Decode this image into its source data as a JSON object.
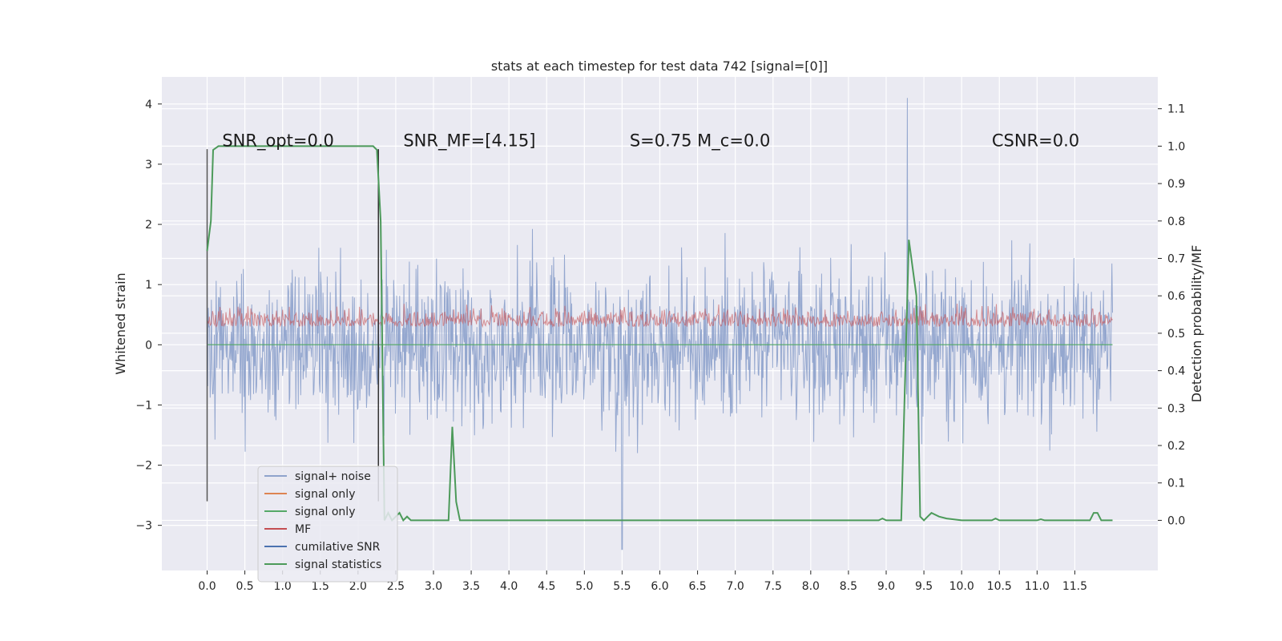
{
  "chart_data": {
    "type": "line",
    "title": "stats at each timestep for test data 742 [signal=[0]]",
    "ylabel_left": "Whitened strain",
    "ylabel_right": "Detection probability/MF",
    "xlabel": "",
    "xlim": [
      -0.6,
      12.6
    ],
    "ylim_left": [
      -3.75,
      4.45
    ],
    "ylim_right": [
      -0.134,
      1.185
    ],
    "xticks": [
      "0.0",
      "0.5",
      "1.0",
      "1.5",
      "2.0",
      "2.5",
      "3.0",
      "3.5",
      "4.0",
      "4.5",
      "5.0",
      "5.5",
      "6.0",
      "6.5",
      "7.0",
      "7.5",
      "8.0",
      "8.5",
      "9.0",
      "9.5",
      "10.0",
      "10.5",
      "11.0",
      "11.5"
    ],
    "yticks_left": [
      "−3",
      "−2",
      "−1",
      "0",
      "1",
      "2",
      "3",
      "4"
    ],
    "yticks_right": [
      "0.0",
      "0.1",
      "0.2",
      "0.3",
      "0.4",
      "0.5",
      "0.6",
      "0.7",
      "0.8",
      "0.9",
      "1.0",
      "1.1"
    ],
    "grid": true,
    "legend_position": "lower-left",
    "annotations": [
      {
        "text": "SNR_opt=0.0",
        "x": 0.2,
        "y": 3.3
      },
      {
        "text": "SNR_MF=[4.15]",
        "x": 2.6,
        "y": 3.3
      },
      {
        "text": "S=0.75   M_c=0.0",
        "x": 5.6,
        "y": 3.3
      },
      {
        "text": "CSNR=0.0",
        "x": 10.4,
        "y": 3.3
      }
    ],
    "series": [
      {
        "name": "signal+ noise",
        "color": "#8fa3cc",
        "description": "whitened strain noise spanning roughly -2.7 to 2.5 with spikes up to 4.1 near t=9.3",
        "x_range": [
          0.0,
          12.0
        ],
        "typical_range": [
          -2.2,
          2.2
        ],
        "max": 4.1,
        "max_at": 9.28,
        "min": -3.4,
        "min_at": 5.5
      },
      {
        "name": "signal only",
        "color": "#dd8452"
      },
      {
        "name": "signal only",
        "color": "#55a868",
        "values_constant": 0.0
      },
      {
        "name": "MF",
        "color": "#c44e52",
        "typical_range": [
          0.05,
          0.9
        ]
      },
      {
        "name": "cumilative SNR",
        "color": "#4c72b0"
      },
      {
        "name": "signal statistics",
        "color": "#4c9a5a",
        "axis": "right",
        "x": [
          0.0,
          0.05,
          0.08,
          0.15,
          0.3,
          0.5,
          1.0,
          1.5,
          2.0,
          2.2,
          2.25,
          2.3,
          2.35,
          2.4,
          2.45,
          2.5,
          2.55,
          2.6,
          2.65,
          2.7,
          2.8,
          3.0,
          3.2,
          3.25,
          3.3,
          3.35,
          4.0,
          5.0,
          6.0,
          7.0,
          8.0,
          8.9,
          8.95,
          9.0,
          9.2,
          9.3,
          9.4,
          9.45,
          9.5,
          9.55,
          9.6,
          9.7,
          9.8,
          10.0,
          10.4,
          10.45,
          10.5,
          11.0,
          11.05,
          11.1,
          11.7,
          11.75,
          11.8,
          11.85,
          11.9,
          12.0
        ],
        "y": [
          0.72,
          0.8,
          0.99,
          1.0,
          1.0,
          1.0,
          1.0,
          1.0,
          1.0,
          1.0,
          0.99,
          0.8,
          0.0,
          0.02,
          0.0,
          0.01,
          0.02,
          0.0,
          0.01,
          0.0,
          0.0,
          0.0,
          0.0,
          0.25,
          0.05,
          0.0,
          0.0,
          0.0,
          0.0,
          0.0,
          0.0,
          0.0,
          0.005,
          0.0,
          0.0,
          0.75,
          0.6,
          0.01,
          0.0,
          0.01,
          0.02,
          0.01,
          0.005,
          0.0,
          0.0,
          0.005,
          0.0,
          0.0,
          0.003,
          0.0,
          0.0,
          0.02,
          0.02,
          0.0,
          0.0,
          0.0
        ]
      }
    ],
    "vlines": [
      {
        "x": 0.0,
        "y": [
          -2.6,
          3.25
        ],
        "color": "#555555"
      },
      {
        "x": 2.27,
        "y": [
          -2.6,
          3.25
        ],
        "color": "#333333"
      }
    ]
  }
}
